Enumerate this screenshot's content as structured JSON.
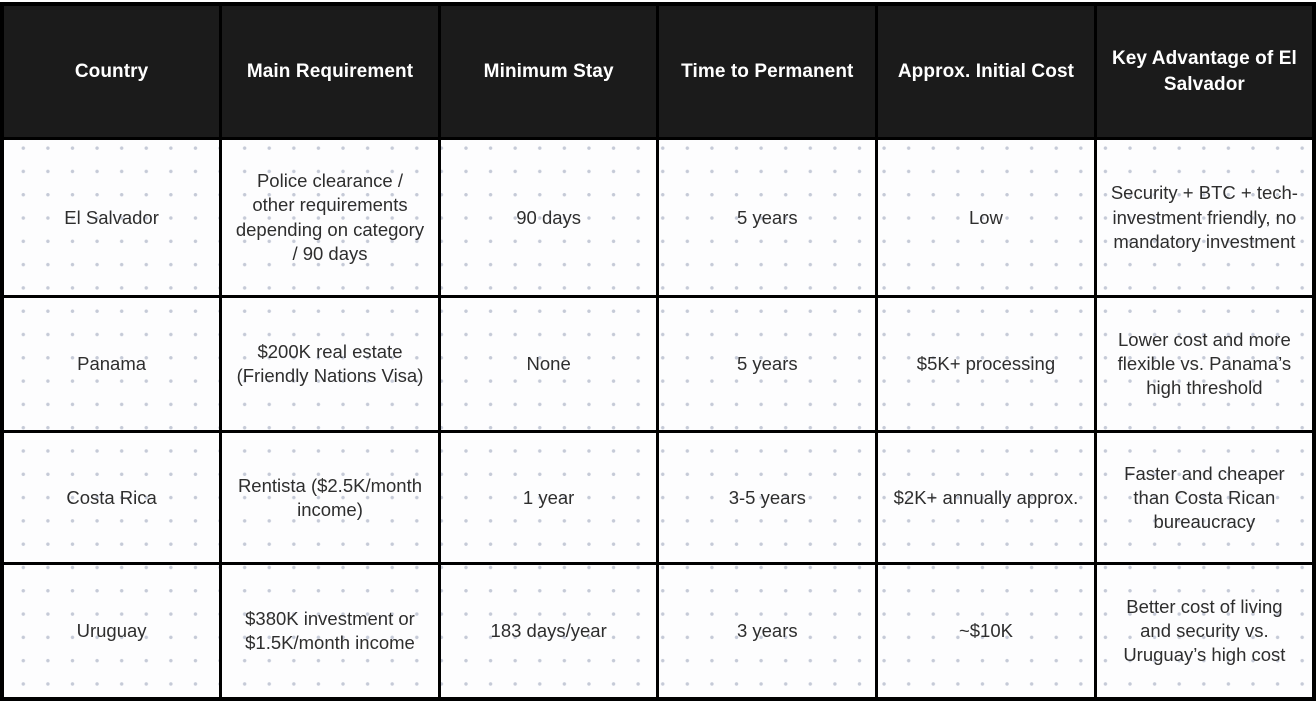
{
  "table": {
    "columns": [
      "Country",
      "Main Requirement",
      "Minimum Stay",
      "Time to Permanent",
      "Approx. Initial Cost",
      "Key Advantage of El Salvador"
    ],
    "rows": [
      {
        "cells": [
          "El Salvador",
          "Police clearance / other requirements depending on category / 90 days",
          "90 days",
          "5 years",
          "Low",
          "Security + BTC + tech-investment friendly, no mandatory investment"
        ]
      },
      {
        "cells": [
          "Panama",
          "$200K real estate (Friendly Nations Visa)",
          "None",
          "5 years",
          "$5K+ processing",
          "Lower cost and more flexible vs. Panama’s high threshold"
        ]
      },
      {
        "cells": [
          "Costa Rica",
          "Rentista ($2.5K/month income)",
          "1 year",
          "3-5 years",
          "$2K+ annually approx.",
          "Faster and cheaper than Costa Rican bureaucracy"
        ]
      },
      {
        "cells": [
          "Uruguay",
          "$380K investment or $1.5K/month income",
          "183 days/year",
          "3 years",
          "~$10K",
          "Better cost of living and security vs. Uruguay’s high cost"
        ]
      }
    ]
  },
  "style": {
    "header_bg": "#1b1b1b",
    "header_text": "#ffffff",
    "border_color": "#000000",
    "body_text": "#2e2e2e",
    "cell_bg": "#fdfdfe",
    "dot_color": "#c5cad7"
  },
  "chart_data": {
    "type": "table",
    "title": "",
    "categories": [
      "Country",
      "Main Requirement",
      "Minimum Stay",
      "Time to Permanent",
      "Approx. Initial Cost",
      "Key Advantage of El Salvador"
    ],
    "values": [
      [
        "El Salvador",
        "Police clearance / other requirements depending on category / 90 days",
        "90 days",
        "5 years",
        "Low",
        "Security + BTC + tech-investment friendly, no mandatory investment"
      ],
      [
        "Panama",
        "$200K real estate (Friendly Nations Visa)",
        "None",
        "5 years",
        "$5K+ processing",
        "Lower cost and more flexible vs. Panama’s high threshold"
      ],
      [
        "Costa Rica",
        "Rentista ($2.5K/month income)",
        "1 year",
        "3-5 years",
        "$2K+ annually approx.",
        "Faster and cheaper than Costa Rican bureaucracy"
      ],
      [
        "Uruguay",
        "$380K investment or $1.5K/month income",
        "183 days/year",
        "3 years",
        "~$10K",
        "Better cost of living and security vs. Uruguay’s high cost"
      ]
    ]
  }
}
